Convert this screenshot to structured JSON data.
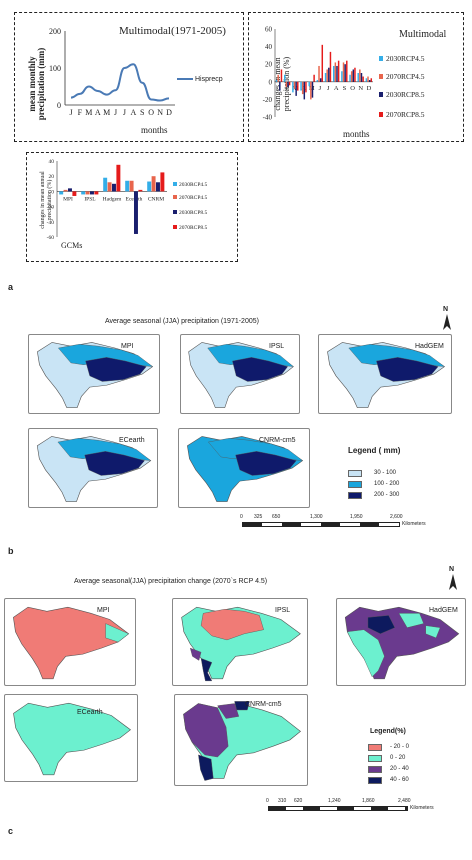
{
  "figure_labels": {
    "a": "a",
    "b": "b",
    "c": "c"
  },
  "panel_a1": {
    "title": "Multimodal(1971-2005)",
    "ylabel": "mean monthly precipitation (mm)",
    "xlabel": "months",
    "legend": "Hisprecp",
    "yticks": [
      "0",
      "100",
      "200"
    ],
    "xticks": [
      "J",
      "F",
      "M",
      "A",
      "M",
      "J",
      "J",
      "A",
      "S",
      "O",
      "N",
      "D"
    ],
    "color": "#4a7ab5"
  },
  "panel_a2": {
    "title": "Multimodal",
    "ylabel": "changes in mean precipitation (%)",
    "xlabel": "months",
    "yticks": [
      "-40",
      "-20",
      "0",
      "20",
      "40",
      "60"
    ],
    "xticks": [
      "J",
      "F",
      "M",
      "A",
      "M",
      "J",
      "J",
      "A",
      "S",
      "O",
      "N",
      "D"
    ],
    "legend": [
      "2030RCP4.5",
      "2070RCP4.5",
      "2030RCP8.5",
      "2070RCP8.5"
    ],
    "colors": [
      "#34aee8",
      "#e8654c",
      "#1a1f6e",
      "#e51b1b"
    ]
  },
  "panel_a3": {
    "ylabel": "changes in mean annual precipitation (%)",
    "xlabel": "GCMs",
    "yticks": [
      "-60",
      "-40",
      "-20",
      "0",
      "20",
      "40"
    ],
    "categories": [
      "MPI",
      "IPSL",
      "Hadgem",
      "Ecearth",
      "CNRM"
    ],
    "legend": [
      "2030RCP4.5",
      "2070RCP4.5",
      "2030RCP8.5",
      "2070RCP8.5"
    ],
    "colors": [
      "#34aee8",
      "#e8654c",
      "#1a1f6e",
      "#e51b1b"
    ]
  },
  "panel_b": {
    "title": "Average seasonal (JJA) precipitation  (1971-2005)",
    "maps": [
      "MPI",
      "IPSL",
      "HadGEM",
      "ECearth",
      "CNRM-cm5"
    ],
    "legend_title": "Legend ( mm)",
    "legend": [
      {
        "label": "30 - 100",
        "color": "#c9e4f5"
      },
      {
        "label": "100 - 200",
        "color": "#1aa6dd"
      },
      {
        "label": "200 - 300",
        "color": "#0f1a6b"
      }
    ],
    "scale_ticks": [
      "0",
      "325",
      "650",
      "1,300",
      "1,950",
      "2,600"
    ],
    "scale_unit": "Kilometers",
    "north": "N"
  },
  "panel_c": {
    "title": "Average seasonal(JJA) precipitation change (2070`s RCP 4.5)",
    "maps": [
      "MPI",
      "IPSL",
      "HadGEM",
      "ECearth",
      "CNRM-cm5"
    ],
    "legend_title": "Legend(%)",
    "legend": [
      {
        "label": "- 20 - 0",
        "color": "#f07b76"
      },
      {
        "label": "0 -  20",
        "color": "#6cf0cf"
      },
      {
        "label": "20 - 40",
        "color": "#6a3a8e"
      },
      {
        "label": "40 - 60",
        "color": "#0d1a5e"
      }
    ],
    "scale_ticks": [
      "0",
      "310",
      "620",
      "1,240",
      "1,860",
      "2,480"
    ],
    "scale_unit": "Kilometers",
    "north": "N"
  },
  "chart_data": [
    {
      "type": "line",
      "title": "Multimodal(1971-2005)",
      "xlabel": "months",
      "ylabel": "mean monthly precipitation (mm)",
      "categories": [
        "J",
        "F",
        "M",
        "A",
        "M",
        "J",
        "J",
        "A",
        "S",
        "O",
        "N",
        "D"
      ],
      "series": [
        {
          "name": "Hisprecp",
          "values": [
            20,
            30,
            50,
            38,
            28,
            40,
            100,
            110,
            60,
            15,
            12,
            18
          ]
        }
      ],
      "ylim": [
        0,
        200
      ]
    },
    {
      "type": "bar",
      "title": "Multimodal",
      "xlabel": "months",
      "ylabel": "changes in mean precipitation (%)",
      "categories": [
        "J",
        "F",
        "M",
        "A",
        "M",
        "J",
        "J",
        "A",
        "S",
        "O",
        "N",
        "D"
      ],
      "series": [
        {
          "name": "2030RCP4.5",
          "values": [
            2,
            8,
            -12,
            -10,
            -5,
            2,
            10,
            18,
            12,
            8,
            10,
            4
          ]
        },
        {
          "name": "2070RCP4.5",
          "values": [
            8,
            -6,
            -8,
            -14,
            -20,
            18,
            14,
            22,
            22,
            12,
            14,
            6
          ]
        },
        {
          "name": "2030RCP8.5",
          "values": [
            -10,
            -6,
            -16,
            -20,
            -18,
            4,
            16,
            18,
            20,
            14,
            10,
            2
          ]
        },
        {
          "name": "2070RCP8.5",
          "values": [
            14,
            -4,
            -10,
            -12,
            8,
            42,
            34,
            24,
            24,
            16,
            6,
            4
          ]
        }
      ],
      "ylim": [
        -40,
        60
      ]
    },
    {
      "type": "bar",
      "xlabel": "GCMs",
      "ylabel": "changes in mean annual precipitation (%)",
      "categories": [
        "MPI",
        "IPSL",
        "Hadgem",
        "Ecearth",
        "CNRM"
      ],
      "series": [
        {
          "name": "2030RCP4.5",
          "values": [
            -4,
            -4,
            18,
            14,
            13
          ]
        },
        {
          "name": "2070RCP4.5",
          "values": [
            2,
            -4,
            12,
            14,
            20
          ]
        },
        {
          "name": "2030RCP8.5",
          "values": [
            4,
            -4,
            10,
            -56,
            12
          ]
        },
        {
          "name": "2070RCP8.5",
          "values": [
            -6,
            -4,
            35,
            2,
            25
          ]
        }
      ],
      "ylim": [
        -60,
        40
      ]
    }
  ]
}
